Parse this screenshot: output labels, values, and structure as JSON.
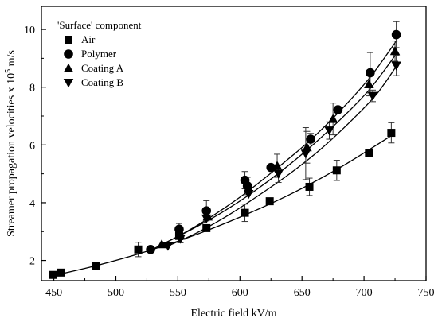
{
  "chart_data": {
    "type": "scatter",
    "xlabel": "Electric field kV/m",
    "ylabel": "Streamer propagation velocities x 10",
    "ylabel_sup": "5",
    "ylabel_unit": " m/s",
    "xlim": [
      440,
      750
    ],
    "ylim": [
      1.3,
      10.8
    ],
    "xticks": [
      450,
      500,
      550,
      600,
      650,
      700,
      750
    ],
    "yticks": [
      2,
      4,
      6,
      8,
      10
    ],
    "legend_title": "'Surface' component",
    "legend_position": "top-left",
    "grid": false,
    "series": [
      {
        "name": "Air",
        "marker": "square",
        "x": [
          449,
          456,
          484,
          518,
          551,
          573,
          604,
          624,
          656,
          678,
          704,
          722
        ],
        "y": [
          1.5,
          1.58,
          1.8,
          2.38,
          2.85,
          3.12,
          3.65,
          4.05,
          4.55,
          5.12,
          5.72,
          6.42
        ],
        "err": [
          0,
          0,
          0,
          0.25,
          0,
          0,
          0.3,
          0,
          0.3,
          0.35,
          0,
          0.35
        ]
      },
      {
        "name": "Polymer",
        "marker": "circle",
        "x": [
          528,
          551,
          573,
          604,
          606,
          625,
          657,
          679,
          705,
          726
        ],
        "y": [
          2.38,
          3.08,
          3.72,
          4.78,
          4.58,
          5.22,
          6.2,
          7.22,
          8.5,
          9.82
        ],
        "err": [
          0,
          0.2,
          0.35,
          0.3,
          0.3,
          0,
          0.2,
          0,
          0.7,
          0.45
        ]
      },
      {
        "name": "Coating A",
        "marker": "triangle-up",
        "x": [
          537,
          552,
          574,
          607,
          630,
          654,
          675,
          704,
          725
        ],
        "y": [
          2.56,
          2.86,
          3.52,
          4.48,
          5.28,
          5.92,
          6.9,
          8.1,
          9.25
        ],
        "err": [
          0,
          0.25,
          0,
          0,
          0.4,
          0.55,
          0.55,
          0.4,
          0.35
        ]
      },
      {
        "name": "Coating B",
        "marker": "triangle-down",
        "x": [
          542,
          552,
          573,
          607,
          631,
          653,
          672,
          707,
          726
        ],
        "y": [
          2.5,
          2.75,
          3.45,
          4.3,
          5.0,
          5.7,
          6.5,
          7.7,
          8.75
        ],
        "err": [
          0,
          0,
          0,
          0,
          0.3,
          0.9,
          0.3,
          0.2,
          0.35
        ]
      }
    ],
    "fits": [
      {
        "series": "Air",
        "x": [
          449,
          484,
          520,
          560,
          600,
          640,
          680,
          722
        ],
        "y": [
          1.47,
          1.82,
          2.25,
          2.82,
          3.5,
          4.28,
          5.2,
          6.32
        ]
      },
      {
        "series": "Polymer",
        "x": [
          528,
          555,
          580,
          605,
          630,
          655,
          680,
          705,
          726
        ],
        "y": [
          2.35,
          2.95,
          3.6,
          4.35,
          5.2,
          6.1,
          7.15,
          8.35,
          9.6
        ]
      },
      {
        "series": "Coating A",
        "x": [
          537,
          560,
          585,
          610,
          635,
          660,
          685,
          705,
          726
        ],
        "y": [
          2.55,
          3.05,
          3.65,
          4.35,
          5.15,
          6.05,
          7.05,
          7.95,
          9.15
        ]
      },
      {
        "series": "Coating B",
        "x": [
          542,
          565,
          590,
          615,
          640,
          665,
          690,
          710,
          726
        ],
        "y": [
          2.5,
          2.95,
          3.55,
          4.25,
          5.0,
          5.85,
          6.85,
          7.75,
          8.72
        ]
      }
    ]
  }
}
